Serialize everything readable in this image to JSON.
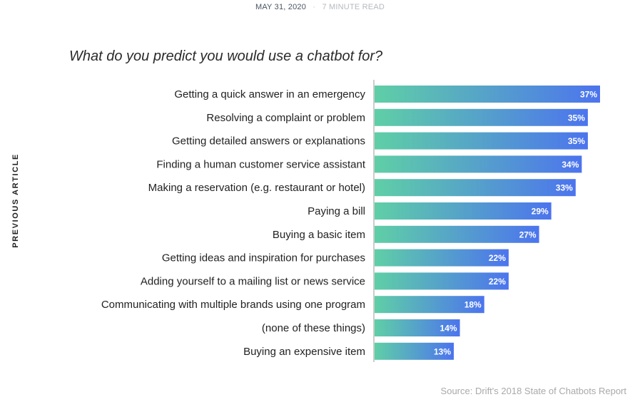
{
  "header": {
    "date": "MAY 31, 2020",
    "separator": "·",
    "read_time": "7 MINUTE READ"
  },
  "sidebar": {
    "previous_article": "PREVIOUS ARTICLE"
  },
  "colors": {
    "bar_start": "#5fcfa6",
    "bar_end": "#4c74ee",
    "axis": "#999999"
  },
  "chart_data": {
    "type": "bar",
    "orientation": "horizontal",
    "title": "What do you predict you would use a chatbot for?",
    "categories": [
      "Getting a quick answer in an emergency",
      "Resolving a complaint or problem",
      "Getting detailed answers or explanations",
      "Finding a human customer service assistant",
      "Making a reservation (e.g. restaurant or hotel)",
      "Paying a bill",
      "Buying a basic item",
      "Getting ideas and inspiration for purchases",
      "Adding yourself to a mailing list or news service",
      "Communicating with multiple brands using one program",
      "(none of these things)",
      "Buying an expensive item"
    ],
    "values": [
      37,
      35,
      35,
      34,
      33,
      29,
      27,
      22,
      22,
      18,
      14,
      13
    ],
    "value_labels": [
      "37%",
      "35%",
      "35%",
      "34%",
      "33%",
      "29%",
      "27%",
      "22%",
      "22%",
      "18%",
      "14%",
      "13%"
    ],
    "unit": "%",
    "xlim": [
      0,
      37
    ],
    "xlabel": "",
    "ylabel": "",
    "grid": false,
    "legend": "none",
    "source": "Source: Drift's 2018 State of Chatbots Report"
  }
}
